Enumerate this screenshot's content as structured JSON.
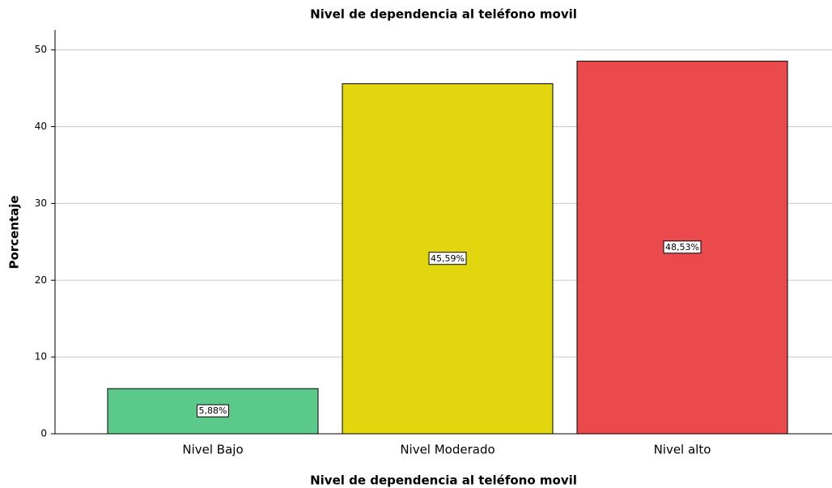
{
  "chart_data": {
    "type": "bar",
    "title": "Nivel de dependencia al teléfono movil",
    "x_label": "Nivel de dependencia al teléfono movil",
    "y_label": "Porcentaje",
    "categories": [
      "Nivel Bajo",
      "Nivel Moderado",
      "Nivel alto"
    ],
    "values": [
      5.88,
      45.59,
      48.53
    ],
    "value_labels": [
      "5,88%",
      "45,59%",
      "48,53%"
    ],
    "colors": [
      "#5bc98a",
      "#e2d60f",
      "#ea4a4b"
    ],
    "ylim": [
      0,
      52.6
    ],
    "yticks": [
      0,
      10,
      20,
      30,
      40,
      50
    ],
    "grid": true
  }
}
